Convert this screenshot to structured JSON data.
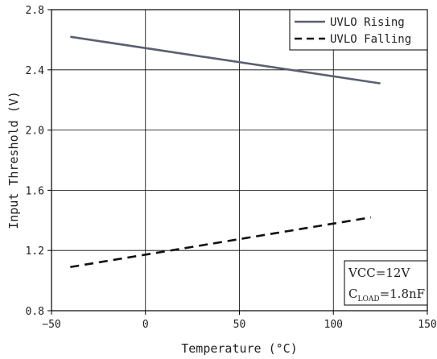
{
  "chart_data": {
    "type": "line",
    "xlabel": "Temperature (°C)",
    "ylabel": "Input Threshold (V)",
    "xlim": [
      -50,
      150
    ],
    "ylim": [
      0.8,
      2.8
    ],
    "xticks": [
      -50,
      0,
      50,
      100,
      150
    ],
    "yticks": [
      0.8,
      1.2,
      1.6,
      2.0,
      2.4,
      2.8
    ],
    "xtick_labels": [
      "−50",
      "0",
      "50",
      "100",
      "150"
    ],
    "ytick_labels": [
      "0.8",
      "1.2",
      "1.6",
      "2.0",
      "2.4",
      "2.8"
    ],
    "grid": true,
    "legend_position": "top-right",
    "series": [
      {
        "name": "UVLO Rising",
        "style": "solid",
        "color": "#5a6070",
        "x": [
          -40,
          125
        ],
        "y": [
          2.62,
          2.31
        ]
      },
      {
        "name": "UVLO Falling",
        "style": "dashed",
        "color": "#111111",
        "x": [
          -40,
          120
        ],
        "y": [
          1.09,
          1.42
        ]
      }
    ],
    "conditions": {
      "line1": "VCC=12V",
      "line2_main": "C",
      "line2_sub": "LOAD",
      "line2_rest": "=1.8nF"
    }
  }
}
